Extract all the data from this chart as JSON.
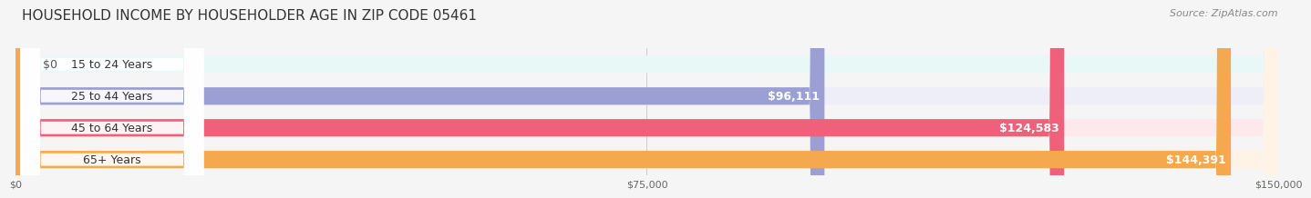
{
  "title": "HOUSEHOLD INCOME BY HOUSEHOLDER AGE IN ZIP CODE 05461",
  "source": "Source: ZipAtlas.com",
  "categories": [
    "15 to 24 Years",
    "25 to 44 Years",
    "45 to 64 Years",
    "65+ Years"
  ],
  "values": [
    0,
    96111,
    124583,
    144391
  ],
  "labels": [
    "$0",
    "$96,111",
    "$124,583",
    "$144,391"
  ],
  "bar_colors": [
    "#5ecfca",
    "#9b9fd4",
    "#f0607a",
    "#f5a94e"
  ],
  "bg_colors": [
    "#e8f8f7",
    "#eeeef8",
    "#fde8ec",
    "#fef3e5"
  ],
  "x_max": 150000,
  "x_ticks": [
    0,
    75000,
    150000
  ],
  "x_tick_labels": [
    "$0",
    "$75,000",
    "$150,000"
  ],
  "background_color": "#f5f5f5",
  "bar_height": 0.55,
  "label_fontsize": 9,
  "title_fontsize": 11,
  "source_fontsize": 8
}
